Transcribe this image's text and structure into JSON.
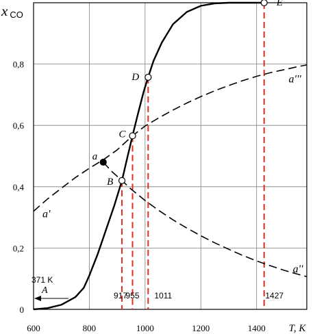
{
  "chart_data": {
    "type": "line",
    "ylabel_main": "x",
    "ylabel_sub": "CO",
    "xlabel": "T, K",
    "xlim": [
      600,
      1580
    ],
    "ylim": [
      0,
      1.0
    ],
    "x_ticks": [
      600,
      800,
      1000,
      1200,
      1400
    ],
    "x_tick_labels": [
      "600",
      "800",
      "1000",
      "1200",
      "1400"
    ],
    "y_ticks": [
      0,
      0.2,
      0.4,
      0.6,
      0.8
    ],
    "y_tick_labels": [
      "0",
      "0,2",
      "0,4",
      "0,6",
      "0,8"
    ],
    "grid": true,
    "solid_curve": {
      "x": [
        600,
        650,
        700,
        750,
        780,
        800,
        830,
        860,
        890,
        917,
        935,
        955,
        975,
        995,
        1011,
        1030,
        1060,
        1100,
        1150,
        1200,
        1250,
        1300,
        1350,
        1400,
        1427
      ],
      "y": [
        0.0,
        0.004,
        0.015,
        0.04,
        0.07,
        0.11,
        0.18,
        0.26,
        0.34,
        0.42,
        0.49,
        0.566,
        0.64,
        0.71,
        0.757,
        0.81,
        0.87,
        0.93,
        0.97,
        0.99,
        0.998,
        1.0,
        1.0,
        1.0,
        1.0
      ]
    },
    "dashed_rising": {
      "x": [
        600,
        650,
        700,
        750,
        800,
        850,
        900,
        955,
        1000,
        1050,
        1100,
        1150,
        1200,
        1250,
        1300,
        1350,
        1400,
        1450,
        1500,
        1550,
        1580
      ],
      "y": [
        0.32,
        0.36,
        0.395,
        0.43,
        0.46,
        0.488,
        0.52,
        0.566,
        0.598,
        0.625,
        0.65,
        0.673,
        0.694,
        0.713,
        0.73,
        0.746,
        0.76,
        0.772,
        0.782,
        0.792,
        0.797
      ]
    },
    "dashed_falling": {
      "x": [
        850,
        880,
        917,
        950,
        1000,
        1050,
        1100,
        1150,
        1200,
        1250,
        1300,
        1350,
        1400,
        1450,
        1500,
        1550,
        1580
      ],
      "y": [
        0.48,
        0.45,
        0.42,
        0.392,
        0.355,
        0.322,
        0.292,
        0.265,
        0.24,
        0.217,
        0.196,
        0.176,
        0.158,
        0.142,
        0.127,
        0.114,
        0.107
      ]
    },
    "vertical_markers": [
      {
        "x": 917,
        "y": 0.42,
        "label": "917"
      },
      {
        "x": 955,
        "y": 0.566,
        "label": "955"
      },
      {
        "x": 1011,
        "y": 0.757,
        "label": "1011"
      },
      {
        "x": 1427,
        "y": 1.0,
        "label": "1427"
      }
    ],
    "points": [
      {
        "name": "a",
        "x": 850,
        "y": 0.48,
        "filled": true
      },
      {
        "name": "B",
        "x": 917,
        "y": 0.42,
        "filled": false
      },
      {
        "name": "C",
        "x": 955,
        "y": 0.566,
        "filled": false
      },
      {
        "name": "D",
        "x": 1011,
        "y": 0.757,
        "filled": false
      },
      {
        "name": "E",
        "x": 1427,
        "y": 1.0,
        "filled": false
      }
    ],
    "curve_labels": [
      {
        "text": "a'",
        "x": 632,
        "y": 0.3
      },
      {
        "text": "a'''",
        "x": 1515,
        "y": 0.74
      },
      {
        "text": "a''",
        "x": 1530,
        "y": 0.12
      }
    ],
    "annotation": {
      "value": "371 K",
      "letter": "A"
    },
    "colors": {
      "marker_line": "#e32b26",
      "curve": "#000000",
      "grid": "#7f7f7f"
    }
  }
}
